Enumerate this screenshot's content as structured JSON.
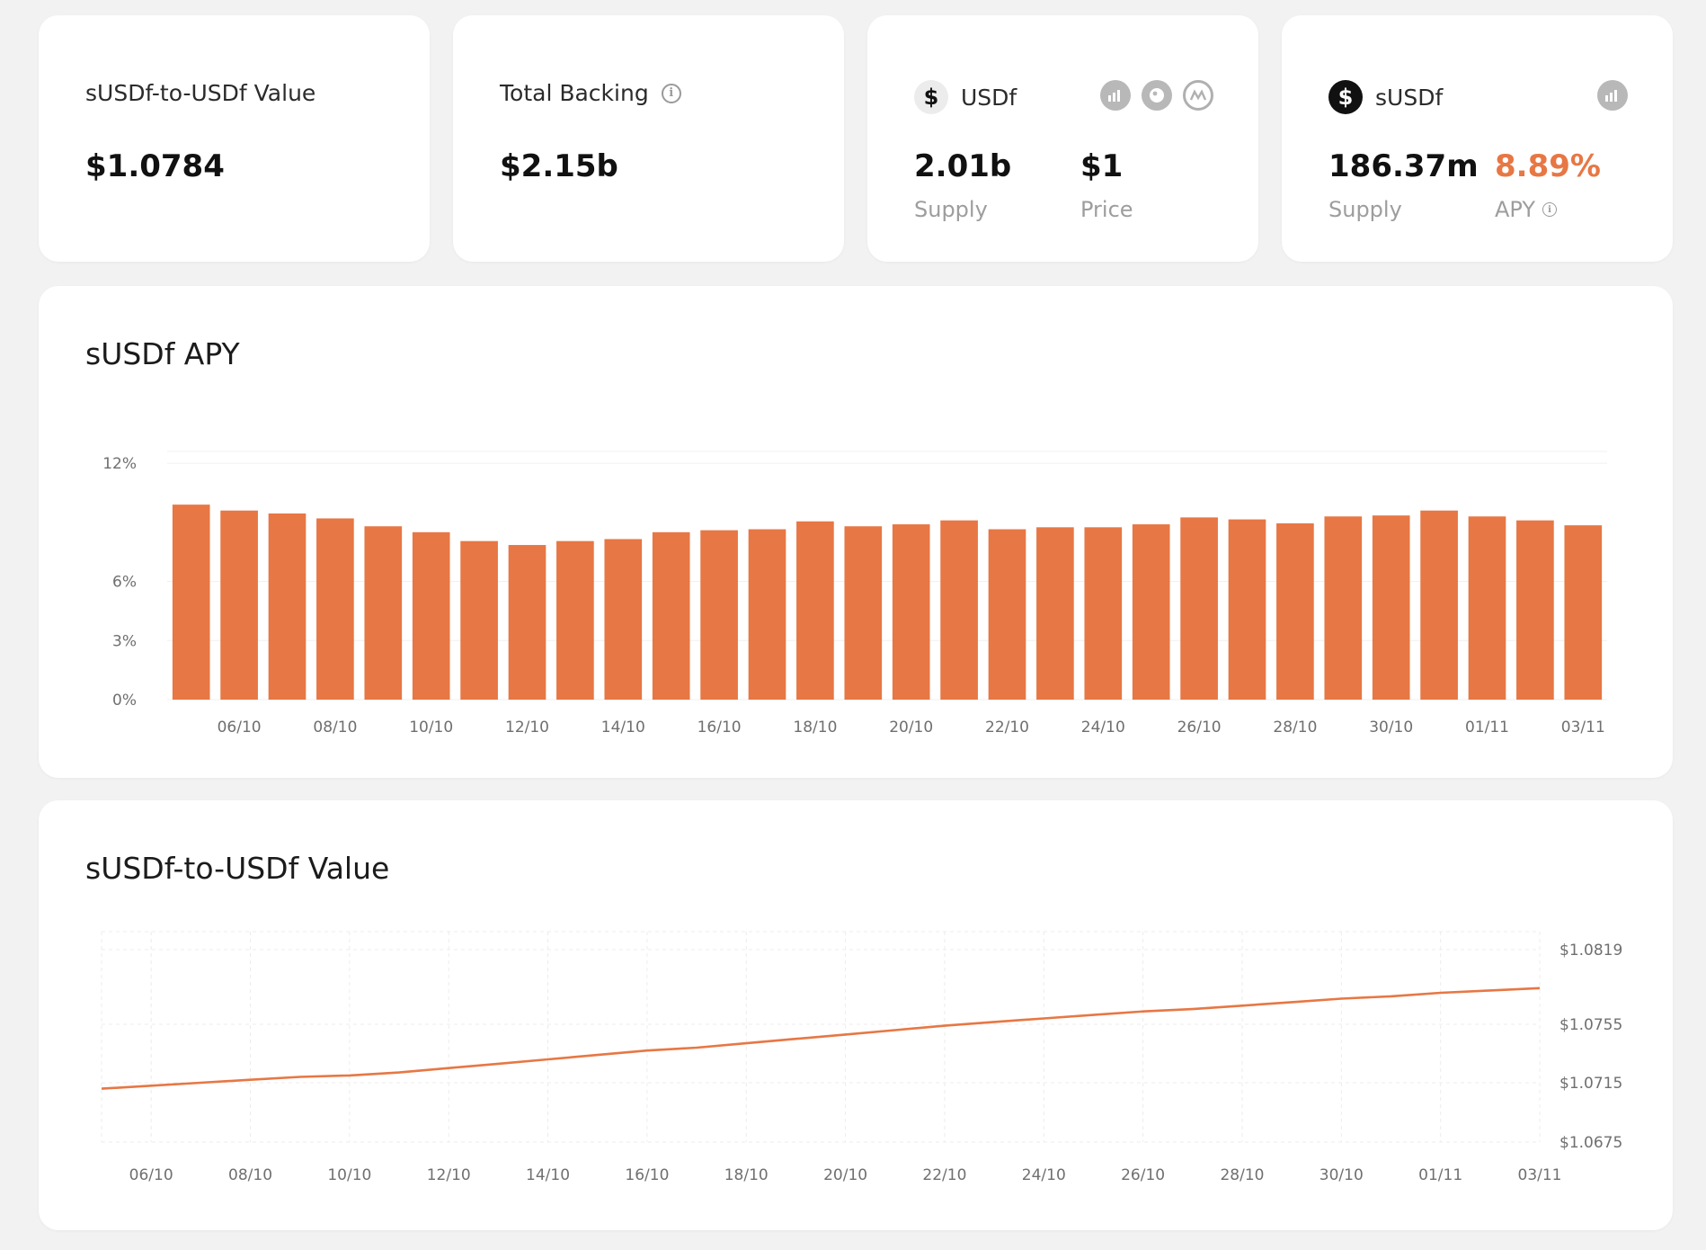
{
  "stats": {
    "value_card": {
      "label": "sUSDf-to-USDf Value",
      "value": "$1.0784"
    },
    "backing_card": {
      "label": "Total Backing",
      "value": "$2.15b"
    },
    "usdf_card": {
      "token": "USDf",
      "supply_value": "2.01b",
      "supply_label": "Supply",
      "price_value": "$1",
      "price_label": "Price",
      "links": [
        "defillama-icon",
        "coingecko-icon",
        "coinmarketcap-icon"
      ]
    },
    "susdf_card": {
      "token": "sUSDf",
      "supply_value": "186.37m",
      "supply_label": "Supply",
      "apy_value": "8.89%",
      "apy_label": "APY",
      "links": [
        "defillama-icon"
      ]
    }
  },
  "colors": {
    "accent": "#e77744",
    "background": "#f2f2f2",
    "card": "#ffffff",
    "muted": "#9d9d9d"
  },
  "apy_chart": {
    "title": "sUSDf APY",
    "chart_data": {
      "type": "bar",
      "y_tick_labels": [
        "0%",
        "3%",
        "6%",
        "12%"
      ],
      "y_tick_values": [
        0,
        3,
        6,
        12
      ],
      "ylim": [
        0,
        12.6
      ],
      "x_tick_labels": [
        "06/10",
        "08/10",
        "10/10",
        "12/10",
        "14/10",
        "16/10",
        "18/10",
        "20/10",
        "22/10",
        "24/10",
        "26/10",
        "28/10",
        "30/10",
        "01/11",
        "03/11"
      ],
      "categories": [
        "05/10",
        "06/10",
        "07/10",
        "08/10",
        "09/10",
        "10/10",
        "11/10",
        "12/10",
        "13/10",
        "14/10",
        "15/10",
        "16/10",
        "17/10",
        "18/10",
        "19/10",
        "20/10",
        "21/10",
        "22/10",
        "23/10",
        "24/10",
        "25/10",
        "26/10",
        "27/10",
        "28/10",
        "29/10",
        "30/10",
        "31/10",
        "01/11",
        "02/11",
        "03/11"
      ],
      "values": [
        9.9,
        9.6,
        9.45,
        9.2,
        8.8,
        8.5,
        8.05,
        7.85,
        8.05,
        8.15,
        8.5,
        8.6,
        8.65,
        9.05,
        8.8,
        8.9,
        9.1,
        8.65,
        8.75,
        8.75,
        8.9,
        9.25,
        9.15,
        8.95,
        9.3,
        9.35,
        9.6,
        9.3,
        9.1,
        8.85
      ],
      "color": "#e77744",
      "grid": true
    }
  },
  "value_chart": {
    "title": "sUSDf-to-USDf Value",
    "chart_data": {
      "type": "line",
      "y_tick_labels": [
        "$1.0675",
        "$1.0715",
        "$1.0755",
        "$1.0819"
      ],
      "y_tick_values": [
        1.0675,
        1.0715,
        1.0755,
        1.0819
      ],
      "x_tick_labels": [
        "06/10",
        "08/10",
        "10/10",
        "12/10",
        "14/10",
        "16/10",
        "18/10",
        "20/10",
        "22/10",
        "24/10",
        "26/10",
        "28/10",
        "30/10",
        "01/11",
        "03/11"
      ],
      "x": [
        "05/10",
        "06/10",
        "07/10",
        "08/10",
        "09/10",
        "10/10",
        "11/10",
        "12/10",
        "13/10",
        "14/10",
        "15/10",
        "16/10",
        "17/10",
        "18/10",
        "19/10",
        "20/10",
        "21/10",
        "22/10",
        "23/10",
        "24/10",
        "25/10",
        "26/10",
        "27/10",
        "28/10",
        "29/10",
        "30/10",
        "31/10",
        "01/11",
        "02/11",
        "03/11"
      ],
      "values": [
        1.0711,
        1.0713,
        1.0715,
        1.0717,
        1.0719,
        1.072,
        1.0722,
        1.0725,
        1.0728,
        1.0731,
        1.0734,
        1.0737,
        1.0739,
        1.0742,
        1.0745,
        1.0748,
        1.0751,
        1.0754,
        1.0757,
        1.076,
        1.0763,
        1.0766,
        1.0768,
        1.0771,
        1.0774,
        1.0777,
        1.0779,
        1.0782,
        1.0784,
        1.0786
      ],
      "color": "#e77744",
      "grid": "dashed"
    }
  }
}
